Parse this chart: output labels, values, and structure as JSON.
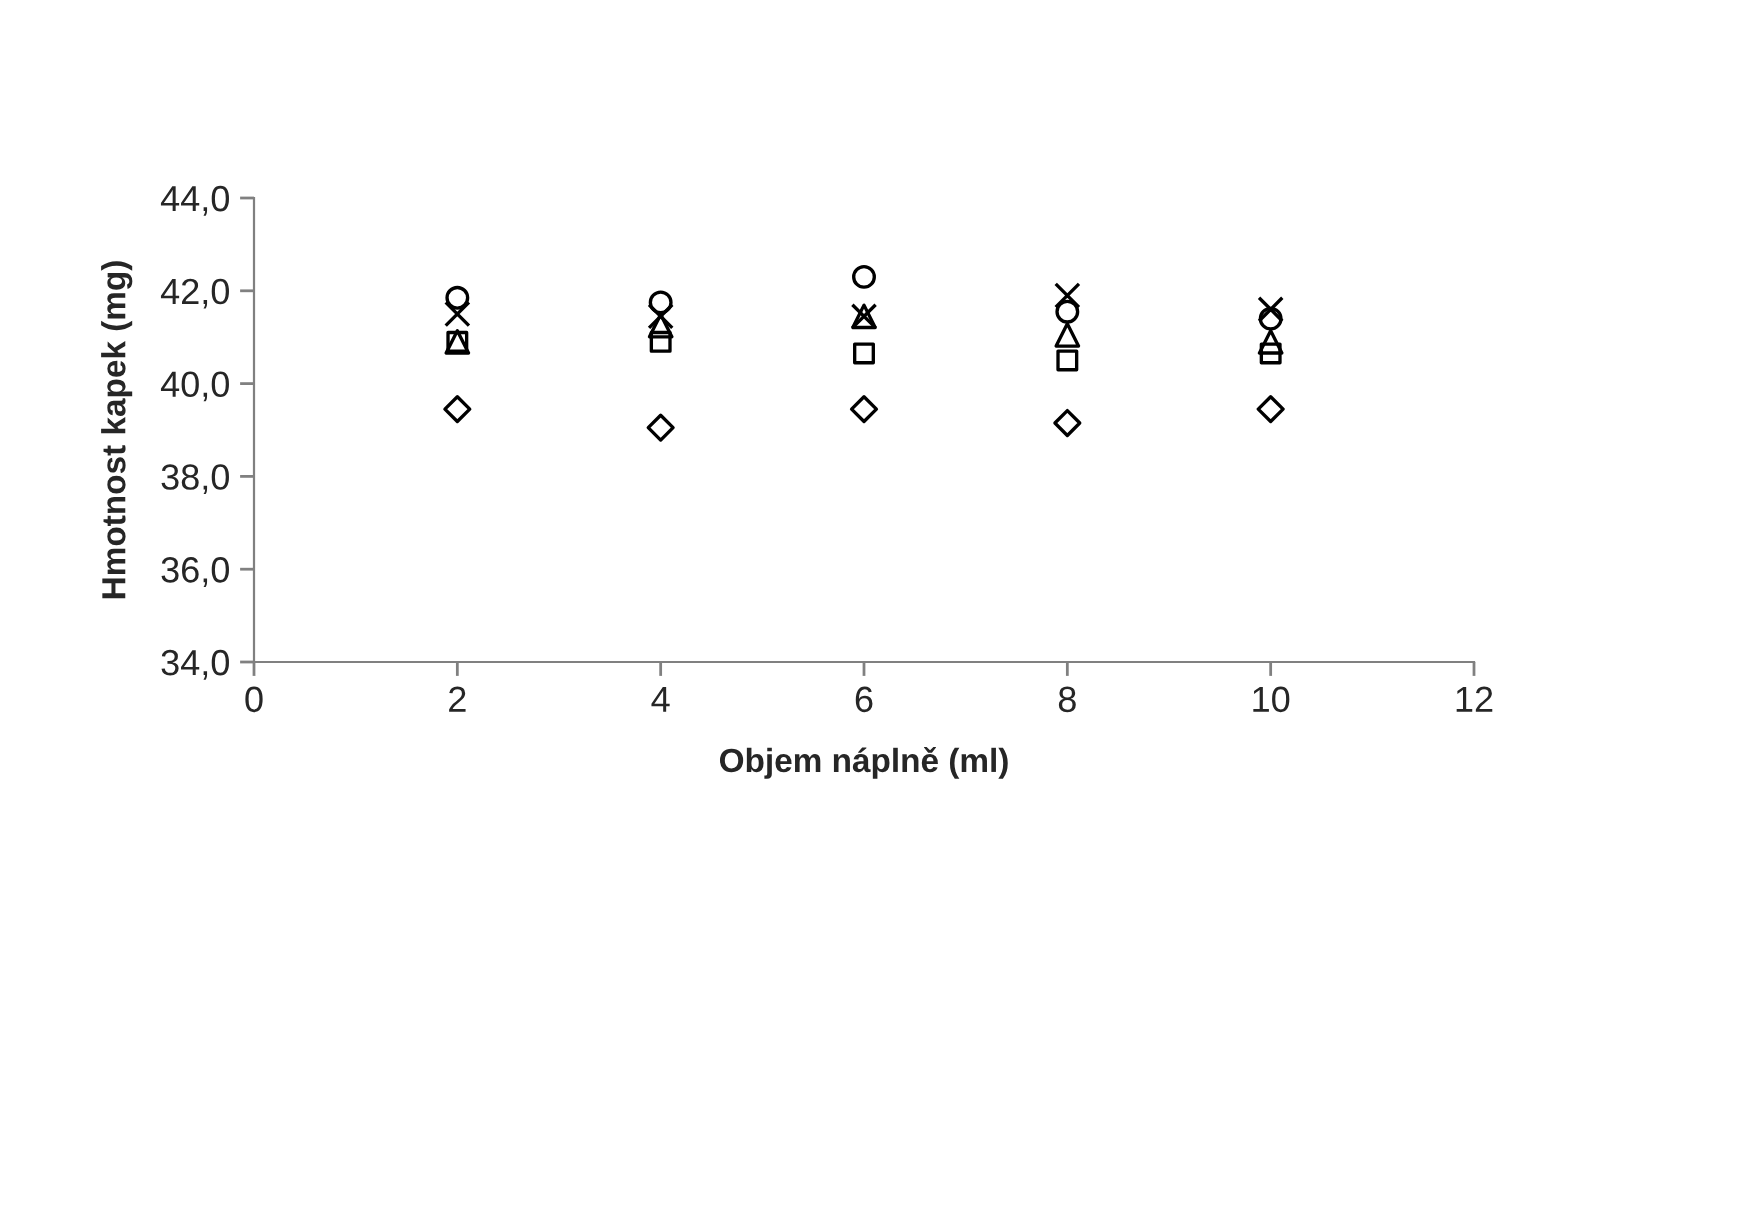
{
  "chart_data": {
    "type": "scatter",
    "xlabel": "Objem náplně (ml)",
    "ylabel": "Hmotnost kapek (mg)",
    "x": [
      2,
      4,
      6,
      8,
      10
    ],
    "series": [
      {
        "color": "#000000",
        "marker": "diamond",
        "values": [
          39.45,
          39.05,
          39.45,
          39.15,
          39.45
        ]
      },
      {
        "color": "#000000",
        "marker": "square",
        "values": [
          40.9,
          40.9,
          40.65,
          40.5,
          40.65
        ]
      },
      {
        "color": "#000000",
        "marker": "triangle",
        "values": [
          40.9,
          41.25,
          41.45,
          41.05,
          40.9
        ]
      },
      {
        "color": "#000000",
        "marker": "cross",
        "values": [
          41.5,
          41.45,
          41.45,
          41.9,
          41.6
        ]
      },
      {
        "color": "#000000",
        "marker": "circle",
        "values": [
          41.85,
          41.75,
          42.3,
          41.55,
          41.4
        ]
      }
    ],
    "xlim": [
      0,
      12
    ],
    "xticks": [
      0,
      2,
      4,
      6,
      8,
      10,
      12
    ],
    "ylim": [
      34,
      44
    ],
    "yticks": [
      {
        "value": 34,
        "label": "34,0"
      },
      {
        "value": 36,
        "label": "36,0"
      },
      {
        "value": 38,
        "label": "38,0"
      },
      {
        "value": 40,
        "label": "40,0"
      },
      {
        "value": 42,
        "label": "42,0"
      },
      {
        "value": 44,
        "label": "44,0"
      }
    ],
    "grid": false,
    "legend": false
  }
}
